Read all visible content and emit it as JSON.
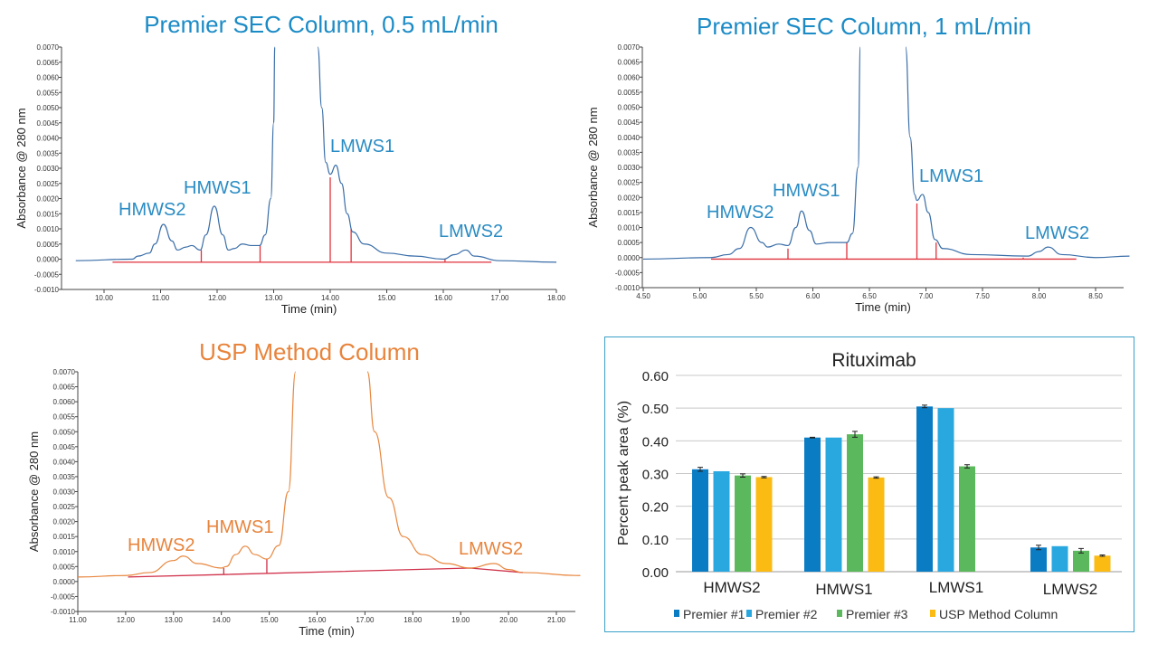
{
  "chart_data": [
    {
      "type": "line",
      "title": "Premier SEC Column, 0.5 mL/min",
      "xlabel": "Time (min)",
      "ylabel": "Absorbance @ 280 nm",
      "xlim": [
        9.5,
        18.0
      ],
      "ylim": [
        -0.001,
        0.007
      ],
      "xticks": [
        "10.00",
        "11.00",
        "12.00",
        "13.00",
        "14.00",
        "15.00",
        "16.00",
        "17.00",
        "18.00"
      ],
      "yticks": [
        "0.0070",
        "0.0065",
        "0.0060",
        "0.0055",
        "0.0050",
        "0.0045",
        "0.0040",
        "0.0035",
        "0.0030",
        "0.0025",
        "0.0020",
        "0.0015",
        "0.0010",
        "0.0005",
        "0.0000",
        "-0.0005",
        "-0.0010"
      ],
      "trace_color": "#3a6ea8",
      "integration_color": "#e0323c",
      "peak_labels": [
        "HMWS2",
        "HMWS1",
        "LMWS1",
        "LMWS2"
      ],
      "trace": [
        [
          9.5,
          -5e-05
        ],
        [
          10.5,
          0
        ],
        [
          10.6,
          0.0001
        ],
        [
          10.8,
          0.0002
        ],
        [
          10.9,
          0.0005
        ],
        [
          11.05,
          0.00115
        ],
        [
          11.2,
          0.0006
        ],
        [
          11.3,
          0.0003
        ],
        [
          11.45,
          0.0004
        ],
        [
          11.55,
          0.00045
        ],
        [
          11.7,
          0.0003
        ],
        [
          11.8,
          0.0008
        ],
        [
          11.95,
          0.00175
        ],
        [
          12.1,
          0.0008
        ],
        [
          12.2,
          0.0003
        ],
        [
          12.3,
          0.00035
        ],
        [
          12.45,
          0.0005
        ],
        [
          12.6,
          0.00045
        ],
        [
          12.75,
          0.00045
        ],
        [
          12.85,
          0.0008
        ],
        [
          12.95,
          0.002
        ],
        [
          13.0,
          0.0045
        ],
        [
          13.02,
          0.0071
        ],
        null,
        [
          13.78,
          0.0071
        ],
        [
          13.85,
          0.005
        ],
        [
          13.92,
          0.0032
        ],
        [
          14.0,
          0.0028
        ],
        [
          14.1,
          0.0031
        ],
        [
          14.2,
          0.0025
        ],
        [
          14.3,
          0.0015
        ],
        [
          14.4,
          0.0009
        ],
        [
          14.6,
          0.0005
        ],
        [
          15.0,
          0.0002
        ],
        [
          15.5,
          0.0001
        ],
        [
          16.0,
          0.0
        ],
        [
          16.2,
          0.00015
        ],
        [
          16.4,
          0.0003
        ],
        [
          16.55,
          0.0001
        ],
        [
          17.0,
          -5e-05
        ],
        [
          18.0,
          -0.0001
        ]
      ],
      "baseline": [
        [
          10.15,
          -0.0001
        ],
        [
          16.85,
          -0.0001
        ]
      ],
      "drops": [
        [
          11.72,
          0.0003
        ],
        [
          12.76,
          0.00045
        ],
        [
          14.0,
          0.0027
        ],
        [
          14.37,
          0.001
        ],
        [
          16.03,
          0.0
        ]
      ]
    },
    {
      "type": "line",
      "title": "Premier SEC Column, 1 mL/min",
      "xlabel": "Time (min)",
      "ylabel": "Absorbance @ 280 nm",
      "xlim": [
        4.5,
        8.8
      ],
      "ylim": [
        -0.001,
        0.007
      ],
      "xticks": [
        "4.50",
        "5.00",
        "5.50",
        "6.00",
        "6.50",
        "7.00",
        "7.50",
        "8.00",
        "8.50"
      ],
      "yticks": [
        "0.0070",
        "0.0065",
        "0.0060",
        "0.0055",
        "0.0050",
        "0.0045",
        "0.0040",
        "0.0035",
        "0.0030",
        "0.0025",
        "0.0020",
        "0.0015",
        "0.0010",
        "0.0005",
        "0.0000",
        "-0.0005",
        "-0.0010"
      ],
      "trace_color": "#3a6ea8",
      "integration_color": "#e0323c",
      "peak_labels": [
        "HMWS2",
        "HMWS1",
        "LMWS1",
        "LMWS2"
      ],
      "trace": [
        [
          4.5,
          -5e-05
        ],
        [
          5.1,
          0
        ],
        [
          5.25,
          0.0001
        ],
        [
          5.35,
          0.0003
        ],
        [
          5.45,
          0.001
        ],
        [
          5.55,
          0.0005
        ],
        [
          5.6,
          0.00035
        ],
        [
          5.7,
          0.00045
        ],
        [
          5.78,
          0.0004
        ],
        [
          5.85,
          0.001
        ],
        [
          5.9,
          0.00155
        ],
        [
          5.97,
          0.0009
        ],
        [
          6.03,
          0.00045
        ],
        [
          6.15,
          0.0005
        ],
        [
          6.3,
          0.0005
        ],
        [
          6.35,
          0.0008
        ],
        [
          6.4,
          0.003
        ],
        [
          6.42,
          0.0071
        ],
        null,
        [
          6.82,
          0.0071
        ],
        [
          6.86,
          0.004
        ],
        [
          6.9,
          0.0021
        ],
        [
          6.92,
          0.0019
        ],
        [
          6.97,
          0.0021
        ],
        [
          7.02,
          0.0015
        ],
        [
          7.08,
          0.0006
        ],
        [
          7.15,
          0.0003
        ],
        [
          7.4,
          0.0001
        ],
        [
          7.9,
          5e-05
        ],
        [
          8.0,
          0.0002
        ],
        [
          8.08,
          0.00035
        ],
        [
          8.2,
          0.0001
        ],
        [
          8.5,
          0.0
        ],
        [
          8.8,
          5e-05
        ]
      ],
      "baseline": [
        [
          5.1,
          -5e-05
        ],
        [
          8.33,
          -5e-05
        ]
      ],
      "drops": [
        [
          5.78,
          0.0003
        ],
        [
          6.3,
          0.0005
        ],
        [
          6.92,
          0.0018
        ],
        [
          7.09,
          0.0005
        ],
        [
          7.86,
          0.0
        ]
      ]
    },
    {
      "type": "line",
      "title": "USP Method Column",
      "xlabel": "Time (min)",
      "ylabel": "Absorbance @ 280 nm",
      "xlim": [
        11.0,
        21.5
      ],
      "ylim": [
        -0.001,
        0.007
      ],
      "xticks": [
        "11.00",
        "12.00",
        "13.00",
        "14.00",
        "15.00",
        "16.00",
        "17.00",
        "18.00",
        "19.00",
        "20.00",
        "21.00"
      ],
      "yticks": [
        "0.0070",
        "0.0065",
        "0.0060",
        "0.0055",
        "0.0050",
        "0.0045",
        "0.0040",
        "0.0035",
        "0.0030",
        "0.0025",
        "0.0020",
        "0.0015",
        "0.0010",
        "0.0005",
        "0.0000",
        "-0.0005",
        "-0.0010"
      ],
      "trace_color": "#e8873f",
      "integration_color": "#d0304a",
      "peak_labels": [
        "HMWS2",
        "HMWS1",
        "LMWS2"
      ],
      "trace": [
        [
          11.0,
          0.00015
        ],
        [
          12.0,
          0.0002
        ],
        [
          12.5,
          0.0003
        ],
        [
          13.0,
          0.0007
        ],
        [
          13.2,
          0.00085
        ],
        [
          13.5,
          0.0006
        ],
        [
          14.0,
          0.00045
        ],
        [
          14.1,
          0.0005
        ],
        [
          14.3,
          0.0009
        ],
        [
          14.5,
          0.00118
        ],
        [
          14.7,
          0.0009
        ],
        [
          14.95,
          0.00075
        ],
        [
          15.2,
          0.0012
        ],
        [
          15.4,
          0.003
        ],
        [
          15.55,
          0.0071
        ],
        null,
        [
          17.05,
          0.0071
        ],
        [
          17.2,
          0.005
        ],
        [
          17.5,
          0.0028
        ],
        [
          17.8,
          0.0015
        ],
        [
          18.2,
          0.0009
        ],
        [
          18.7,
          0.0006
        ],
        [
          19.2,
          0.00045
        ],
        [
          19.7,
          0.0006
        ],
        [
          20.0,
          0.0004
        ],
        [
          20.3,
          0.0003
        ],
        [
          21.5,
          0.0002
        ]
      ],
      "baseline": [
        [
          12.05,
          0.00015
        ],
        [
          19.2,
          0.00045
        ],
        [
          20.3,
          0.0003
        ]
      ],
      "drops": [
        [
          14.05,
          0.00045
        ],
        [
          14.95,
          0.00075
        ]
      ]
    },
    {
      "type": "bar",
      "title": "Rituximab",
      "ylabel": "Percent peak area (%)",
      "ylim": [
        0,
        0.6
      ],
      "grid": true,
      "legend": "bottom",
      "yticks": [
        "0.60",
        "0.50",
        "0.40",
        "0.30",
        "0.20",
        "0.10",
        "0.00"
      ],
      "categories": [
        "HMWS2",
        "HMWS1",
        "LMWS1",
        "LMWS2"
      ],
      "series": [
        {
          "name": "Premier #1",
          "color": "#0a7cc4",
          "values": [
            0.313,
            0.41,
            0.505,
            0.074
          ],
          "errors": [
            0.006,
            0.001,
            0.004,
            0.007
          ]
        },
        {
          "name": "Premier #2",
          "color": "#29a8e0",
          "values": [
            0.307,
            0.41,
            0.5,
            0.078
          ],
          "errors": [
            0,
            0,
            0,
            0
          ]
        },
        {
          "name": "Premier #3",
          "color": "#5cb85c",
          "values": [
            0.294,
            0.42,
            0.322,
            0.064
          ],
          "errors": [
            0.005,
            0.009,
            0.005,
            0.007
          ]
        },
        {
          "name": "USP Method Column",
          "color": "#fbbb12",
          "values": [
            0.289,
            0.288,
            null,
            0.049
          ],
          "errors": [
            0.002,
            0.002,
            null,
            0.002
          ]
        }
      ]
    }
  ]
}
